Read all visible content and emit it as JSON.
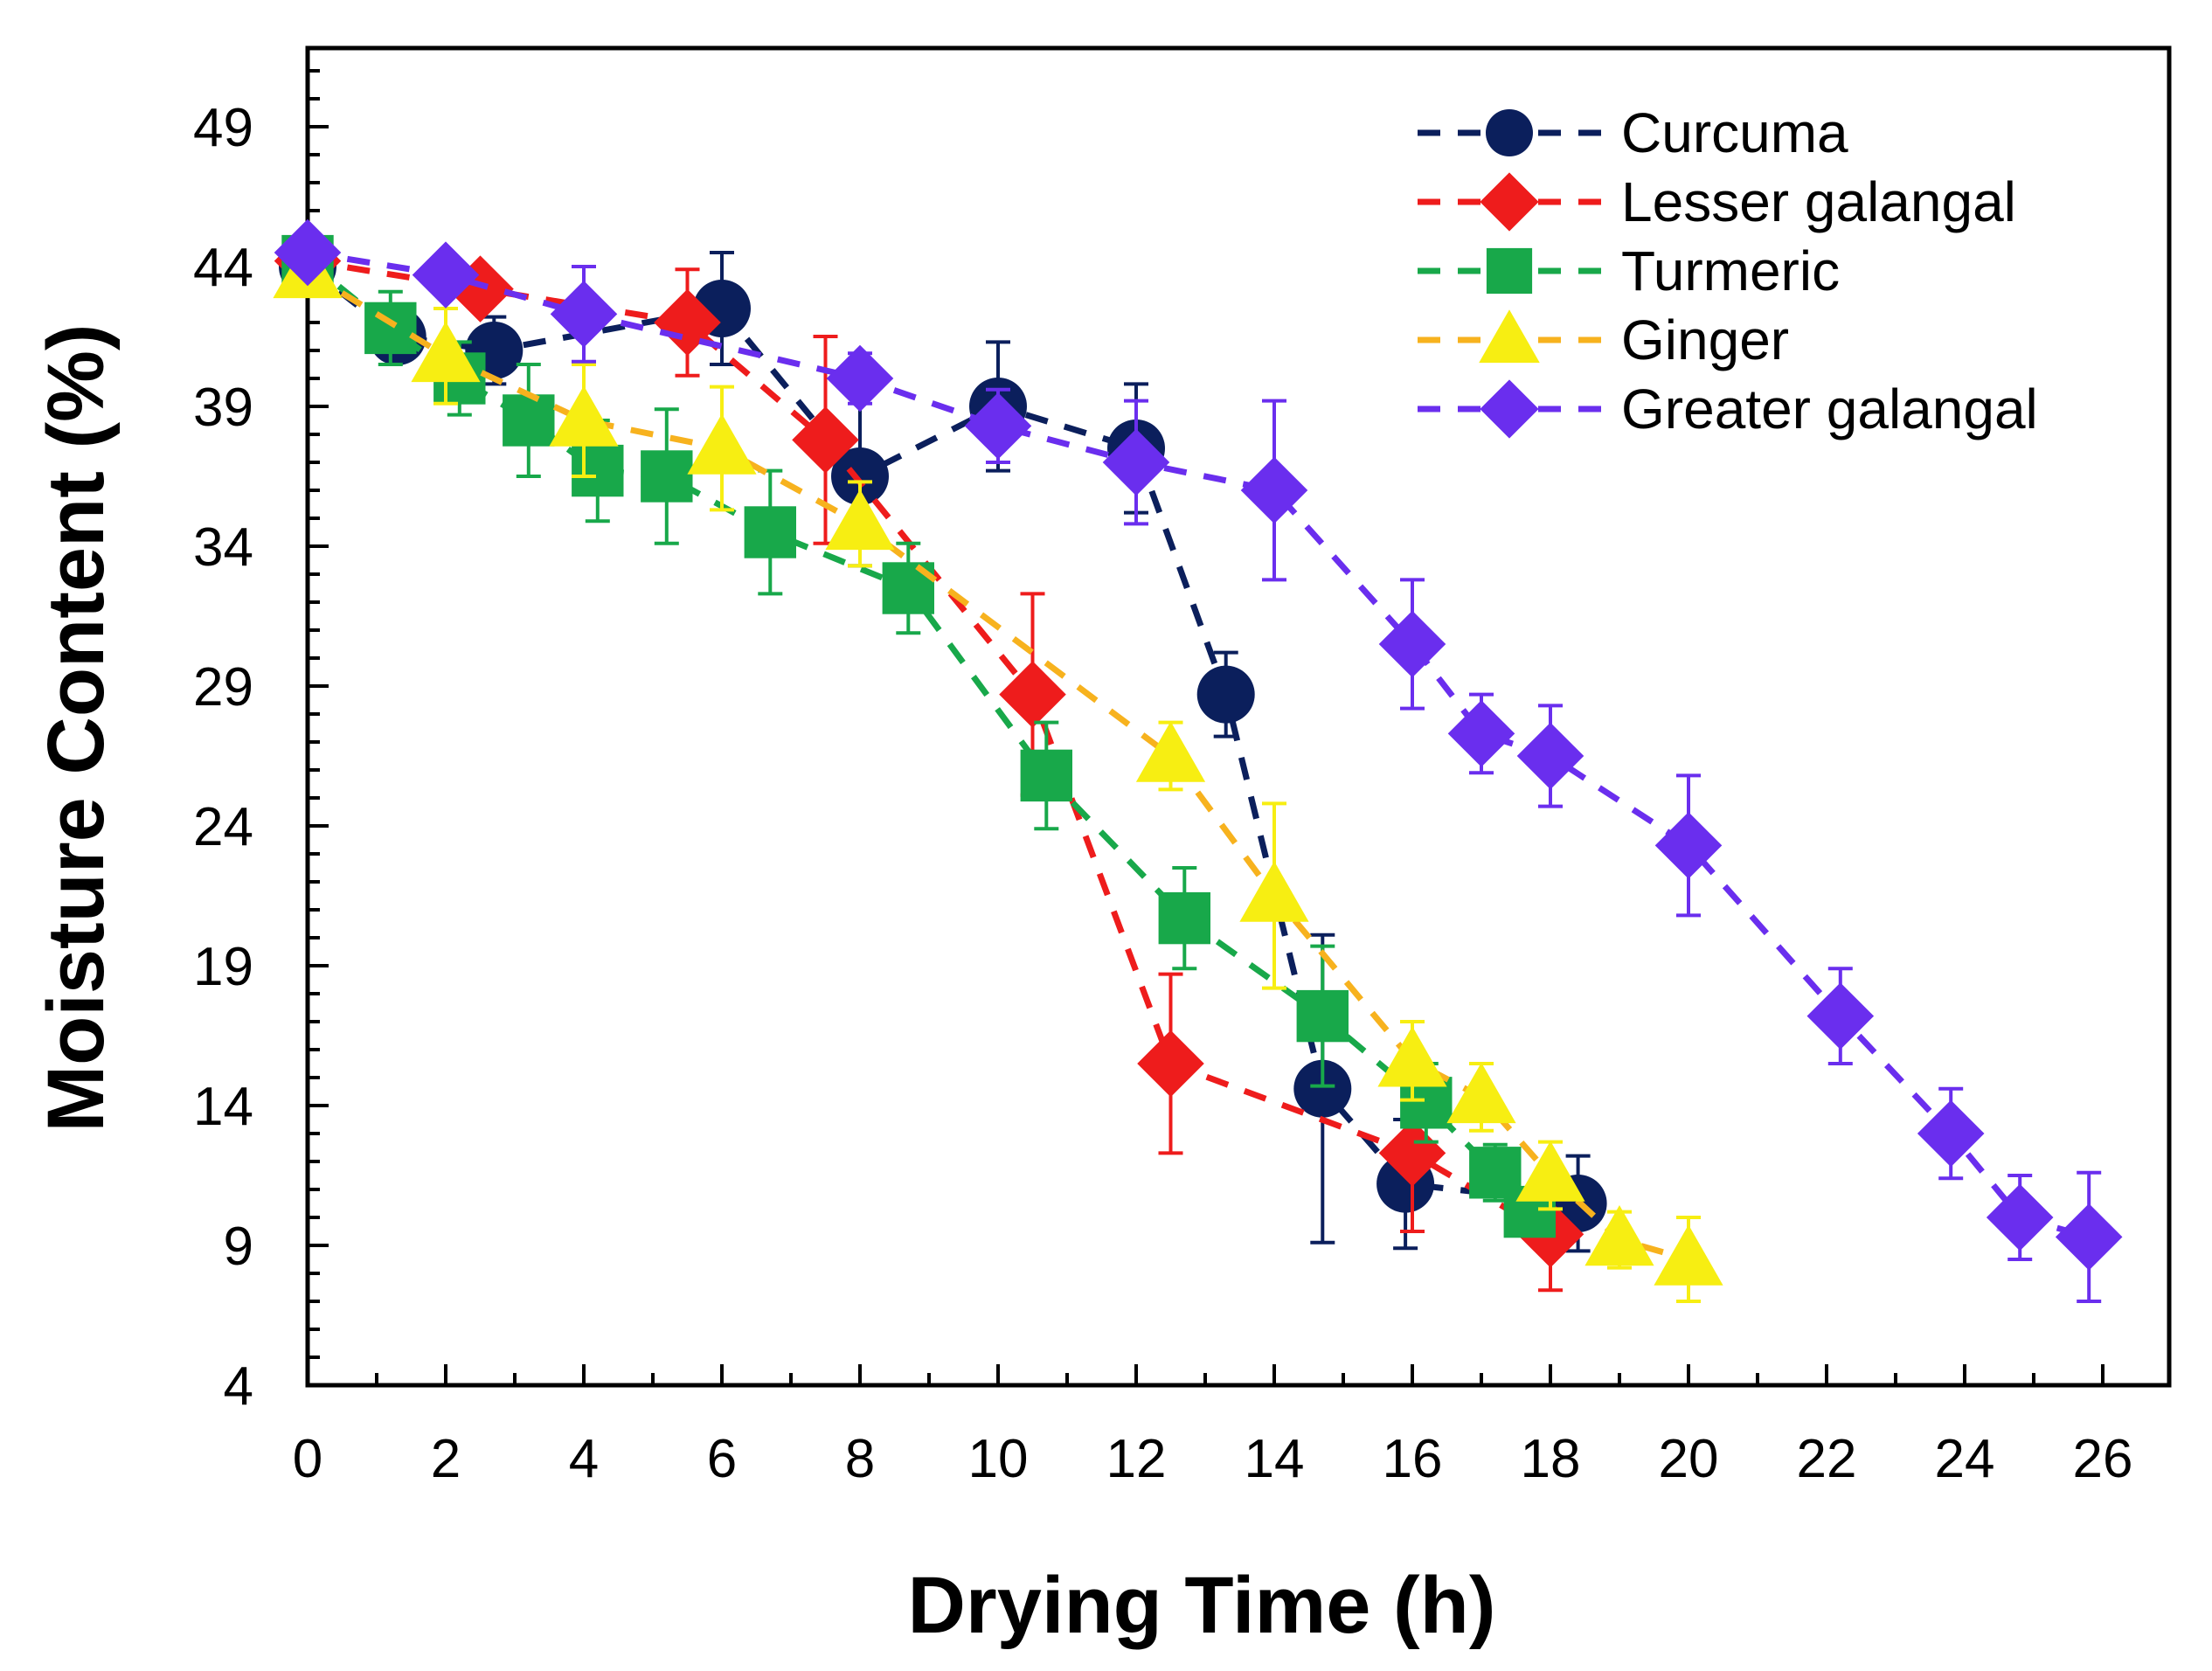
{
  "chart_data": {
    "type": "line",
    "title": "",
    "xlabel": "Drying Time (h)",
    "ylabel": "Moisture Content (%)",
    "xlim": [
      0,
      27
    ],
    "ylim": [
      4,
      52
    ],
    "xticks": [
      0,
      2,
      4,
      6,
      8,
      10,
      12,
      14,
      16,
      18,
      20,
      22,
      24,
      26
    ],
    "yticks": [
      4,
      9,
      14,
      19,
      24,
      29,
      34,
      39,
      44,
      49
    ],
    "grid": false,
    "legend_position": "top-right",
    "series": [
      {
        "name": "Curcuma",
        "color": "#0b1f5c",
        "marker": "circle",
        "x": [
          0,
          1.3,
          2.7,
          6,
          8,
          10,
          12,
          13.3,
          14.7,
          15.9,
          18.4
        ],
        "y": [
          44,
          41.5,
          41,
          42.5,
          36.5,
          39,
          37.5,
          28.7,
          14.6,
          11.2,
          10.5
        ],
        "err": [
          0.6,
          0.8,
          1.2,
          2,
          3.2,
          2.3,
          2.3,
          1.5,
          5.5,
          2.3,
          1.7
        ]
      },
      {
        "name": "Lesser galangal",
        "color": "#ee1c1c",
        "marker": "diamond",
        "x": [
          0,
          2.5,
          5.5,
          7.5,
          10.5,
          12.5,
          16,
          18
        ],
        "y": [
          44.2,
          43.2,
          42,
          37.8,
          28.7,
          15.5,
          12.3,
          9.4
        ],
        "err": [
          0.6,
          0.6,
          1.9,
          3.7,
          3.6,
          3.2,
          2.8,
          2
        ]
      },
      {
        "name": "Turmeric",
        "color": "#18a84a",
        "marker": "square",
        "x": [
          0,
          1.2,
          2.2,
          3.2,
          4.2,
          5.2,
          6.7,
          8.7,
          10.7,
          12.7,
          14.7,
          16.2,
          17.2,
          17.7
        ],
        "y": [
          44.2,
          41.8,
          40,
          38.5,
          36.7,
          36.5,
          34.5,
          32.5,
          25.8,
          20.7,
          17.2,
          14.1,
          11.6,
          10.2
        ],
        "err": [
          0.6,
          1.3,
          1.3,
          2,
          1.8,
          2.4,
          2.2,
          1.6,
          1.9,
          1.8,
          2.5,
          1.4,
          1,
          0.7
        ]
      },
      {
        "name": "Ginger",
        "color": "#f7ee12",
        "line_color": "#f7b21e",
        "marker": "triangle",
        "x": [
          0,
          2,
          4,
          6,
          8,
          12.5,
          14,
          16,
          17,
          18,
          19,
          20
        ],
        "y": [
          43.8,
          40.8,
          38.5,
          37.5,
          34.8,
          26.5,
          21.5,
          15.6,
          14.3,
          11.5,
          9.2,
          8.5
        ],
        "err": [
          0.8,
          1.7,
          2,
          2.2,
          1.5,
          1.2,
          3.3,
          1.4,
          1.2,
          1.2,
          1,
          1.5
        ]
      },
      {
        "name": "Greater galangal",
        "color": "#6a2eee",
        "marker": "diamond",
        "x": [
          0,
          2,
          4,
          8,
          10,
          12,
          14,
          16,
          17,
          18,
          20,
          22.2,
          23.8,
          24.8,
          25.8
        ],
        "y": [
          44.5,
          43.7,
          42.3,
          40,
          38.3,
          37,
          36,
          30.5,
          27.3,
          26.5,
          23.3,
          17.2,
          13,
          10,
          9.3
        ],
        "err": [
          0.4,
          0.6,
          1.7,
          0.9,
          1.3,
          2.2,
          3.2,
          2.3,
          1.4,
          1.8,
          2.5,
          1.7,
          1.6,
          1.5,
          2.3
        ]
      }
    ]
  }
}
